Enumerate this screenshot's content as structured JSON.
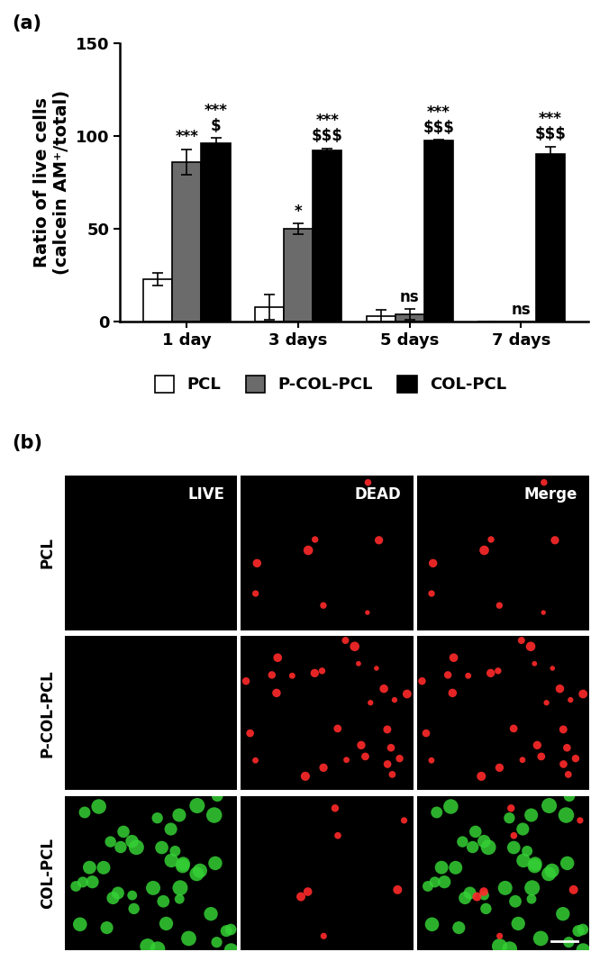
{
  "chart_data": {
    "type": "bar",
    "y_label": "Ratio of live cells\n(calcein AM⁺/total)",
    "categories": [
      "1 day",
      "3 days",
      "5 days",
      "7 days"
    ],
    "ylim": [
      0,
      150
    ],
    "yticks": [
      0,
      50,
      100,
      150
    ],
    "legend": "below",
    "series": [
      {
        "name": "PCL",
        "color": "#ffffff",
        "values": [
          23,
          8,
          3,
          0
        ],
        "error": [
          3.5,
          7,
          3.5,
          0
        ],
        "annotations": [
          null,
          null,
          null,
          null
        ]
      },
      {
        "name": "P-COL-PCL",
        "color": "#6b6b6b",
        "values": [
          86,
          50,
          4,
          0
        ],
        "error": [
          7,
          3,
          3,
          0
        ],
        "annotations": [
          "***",
          "*",
          "ns",
          "ns"
        ]
      },
      {
        "name": "COL-PCL",
        "color": "#000000",
        "values": [
          96,
          92.5,
          97.5,
          90.5
        ],
        "error": [
          3,
          1,
          0.5,
          4
        ],
        "annotations": [
          "***\n$",
          "***\n$$$",
          "***\n$$$",
          "***\n$$$"
        ]
      }
    ]
  },
  "panel_labels": [
    "(a)",
    "(b)"
  ],
  "image_grid": {
    "rows": [
      "PCL",
      "P-COL-PCL",
      "COL-PCL"
    ],
    "columns": [
      "LIVE",
      "DEAD",
      "Merge"
    ]
  }
}
